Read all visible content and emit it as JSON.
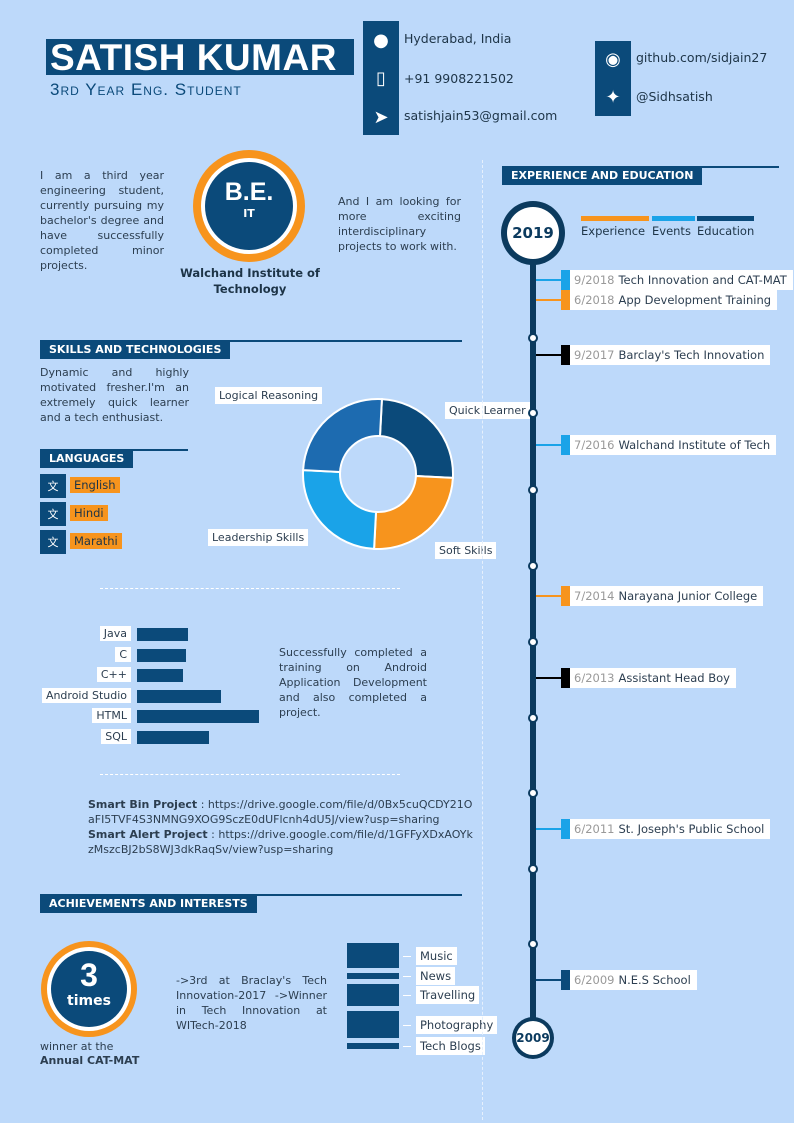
{
  "header": {
    "name": "SATISH KUMAR",
    "subtitle": "3rd Year Eng. Student"
  },
  "contact": [
    {
      "icon": "map-pin-icon",
      "text": "Hyderabad, India"
    },
    {
      "icon": "mobile-phone-icon",
      "text": "+91 9908221502"
    },
    {
      "icon": "paper-plane-icon",
      "text": "satishjain53@gmail.com"
    }
  ],
  "social": [
    {
      "icon": "github-icon",
      "text": "github.com/sidjain27"
    },
    {
      "icon": "twitter-icon",
      "text": "@Sidhsatish"
    }
  ],
  "intro": {
    "left": "I am a third year engineering student, currently pursuing my bachelor's degree and have successfully completed minor projects.",
    "right": "And I am looking for more exciting interdisciplinary projects to work with.",
    "degree": "B.E.",
    "branch": "IT",
    "college": "Walchand Institute of Technology"
  },
  "skills": {
    "heading": "SKILLS AND TECHNOLOGIES",
    "text": "Dynamic and highly motivated fresher.I'm an extremely quick learner and a tech enthusiast.",
    "donut": [
      {
        "label": "Quick Learner",
        "value": 25,
        "color": "#0b4a7a"
      },
      {
        "label": "Soft Skills",
        "value": 25,
        "color": "#f7941d"
      },
      {
        "label": "Leadership Skills",
        "value": 25,
        "color": "#1aa3e8"
      },
      {
        "label": "Logical Reasoning",
        "value": 25,
        "color": "#1d6bb0"
      }
    ],
    "bars": [
      {
        "label": "Java",
        "level": 42
      },
      {
        "label": "C",
        "level": 40
      },
      {
        "label": "C++",
        "level": 38
      },
      {
        "label": "Android Studio",
        "level": 69
      },
      {
        "label": "HTML",
        "level": 100
      },
      {
        "label": "SQL",
        "level": 59
      }
    ],
    "bars_note": "Successfully completed a training on Android Application Development and also completed a project."
  },
  "languages": {
    "heading": "LANGUAGES",
    "items": [
      "English",
      "Hindi",
      "Marathi"
    ]
  },
  "projects": [
    {
      "name": "Smart Bin Project",
      "url": "https://drive.google.com/file/d/0Bx5cuQCDY21OaFI5TVF4S3NMNG9XOG9SczE0dUFlcnh4dU5J/view?usp=sharing"
    },
    {
      "name": "Smart Alert Project",
      "url": "https://drive.google.com/file/d/1GFFyXDxAOYkzMszcBJ2bS8WJ3dkRaqSv/view?usp=sharing"
    }
  ],
  "achievements": {
    "heading": "ACHIEVEMENTS AND INTERESTS",
    "count": "3",
    "count_unit": "times",
    "caption1": "winner at the",
    "caption2": "Annual CAT-MAT",
    "text": "->3rd at Braclay's Tech Innovation-2017 ->Winner in Tech Innovation at WITech-2018",
    "interests": [
      {
        "label": "Music",
        "value": 25
      },
      {
        "label": "News",
        "value": 6
      },
      {
        "label": "Travelling",
        "value": 22
      },
      {
        "label": "Photography",
        "value": 27
      },
      {
        "label": "Tech Blogs",
        "value": 6
      }
    ]
  },
  "experience": {
    "heading": "EXPERIENCE AND EDUCATION",
    "start": "2019",
    "end": "2009",
    "legend": [
      {
        "label": "Experience",
        "color": "#f7941d"
      },
      {
        "label": "Events",
        "color": "#1aa3e8"
      },
      {
        "label": "Education",
        "color": "#0b4a7a"
      }
    ],
    "entries": [
      {
        "date": "9/2018",
        "title": "Tech Innovation and CAT-MAT",
        "color": "#1aa3e8"
      },
      {
        "date": "6/2018",
        "title": "App Development Training",
        "color": "#f7941d"
      },
      {
        "date": "9/2017",
        "title": "Barclay's Tech Innovation",
        "color": "#000000"
      },
      {
        "date": "7/2016",
        "title": "Walchand Institute of Tech",
        "color": "#1aa3e8"
      },
      {
        "date": "7/2014",
        "title": "Narayana Junior College",
        "color": "#f7941d"
      },
      {
        "date": "6/2013",
        "title": "Assistant Head Boy",
        "color": "#000000"
      },
      {
        "date": "6/2011",
        "title": "St. Joseph's Public School",
        "color": "#1aa3e8"
      },
      {
        "date": "6/2009",
        "title": "N.E.S School",
        "color": "#0b4a7a"
      }
    ]
  }
}
